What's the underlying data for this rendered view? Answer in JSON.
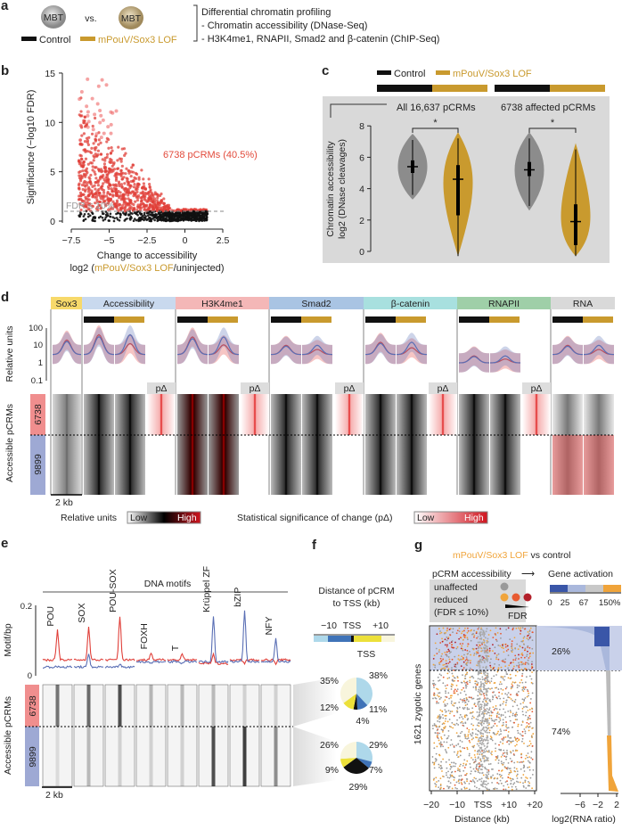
{
  "colors": {
    "control": "#111111",
    "lof": "#c99a2e",
    "red": "#e0403a",
    "blue": "#5a6fb5",
    "gray": "#8a8a8a",
    "orange": "#f0a43a"
  },
  "panel_a": {
    "label": "a",
    "embryo_label": "MBT",
    "vs": "vs.",
    "legend_control": "Control",
    "legend_lof": "mPouV/Sox3 LOF",
    "lines": [
      "Differential chromatin profiling",
      "- Chromatin accessibility (DNase-Seq)",
      "- H3K4me1, RNAPII, Smad2 and β-catenin (ChIP-Seq)"
    ]
  },
  "panel_d": {
    "label": "d",
    "tracks": [
      {
        "name": "Sox3",
        "color": "#f7d96a"
      },
      {
        "name": "Accessibility",
        "color": "#c9d9ee"
      },
      {
        "name": "H3K4me1",
        "color": "#f4b7b7"
      },
      {
        "name": "Smad2",
        "color": "#a9c4e3"
      },
      {
        "name": "β-catenin",
        "color": "#a8e0df"
      },
      {
        "name": "RNAPII",
        "color": "#9fcfa8"
      },
      {
        "name": "RNA",
        "color": "#d9d9d9"
      }
    ],
    "pdelta": "pΔ",
    "ylabel": "Relative units",
    "yticks": [
      "100",
      "10",
      "1",
      "0.1"
    ],
    "rows_label": "Accessible pCRMs",
    "group1": "6738",
    "group2": "9899",
    "scale": "2 kb",
    "legend_rel": "Relative units",
    "legend_sig": "Statistical significance of change (pΔ)",
    "low": "Low",
    "high": "High"
  },
  "panel_f": {
    "label": "f",
    "title1": "Distance of pCRM",
    "title2": "to TSS (kb)",
    "ticks": [
      "−10",
      "TSS",
      "+10"
    ],
    "tss": "TSS"
  },
  "chart_data": [
    {
      "panel": "b",
      "type": "scatter",
      "ylabel": "Significance (−log10 FDR)",
      "xlabel_1": "Change to accessibility",
      "xlabel_2a": "log2 (",
      "xlabel_2b": "mPouV/Sox3 LOF",
      "xlabel_2c": "/uninjected)",
      "xlim": [
        -7.5,
        2.5
      ],
      "ylim": [
        0,
        15
      ],
      "xticks": [
        "−7.5",
        "−5",
        "−2.5",
        "0",
        "2.5"
      ],
      "yticks": [
        "0",
        "5",
        "10",
        "15"
      ],
      "threshold_label": "FDR ≤ 10%",
      "threshold": 1,
      "annotation": "6738 pCRMs (40.5%)",
      "series": [
        {
          "name": "significant",
          "color": "#e0403a"
        },
        {
          "name": "not significant",
          "color": "#111111"
        }
      ]
    },
    {
      "panel": "c",
      "type": "violin",
      "legend_control": "Control",
      "legend_lof": "mPouV/Sox3 LOF",
      "ylabel_1": "Chromatin accessibility",
      "ylabel_2": "log2 (DNase cleavages)",
      "ylim": [
        0,
        8
      ],
      "yticks": [
        "0",
        "2",
        "4",
        "6",
        "8"
      ],
      "groups": [
        {
          "name": "All 16,637 pCRMs",
          "sig": "*",
          "control": {
            "median": 5.4,
            "q1": 5.0,
            "q3": 5.8,
            "min": 3.6,
            "max": 7.1
          },
          "lof": {
            "median": 4.6,
            "q1": 2.3,
            "q3": 5.5,
            "min": -0.3,
            "max": 7.2
          }
        },
        {
          "name": "6738 affected pCRMs",
          "sig": "*",
          "control": {
            "median": 5.2,
            "q1": 4.8,
            "q3": 5.7,
            "min": 2.9,
            "max": 7.2
          },
          "lof": {
            "median": 1.9,
            "q1": 0.4,
            "q3": 3.0,
            "min": -0.3,
            "max": 6.5
          }
        }
      ]
    },
    {
      "panel": "e",
      "type": "line",
      "title": "DNA motifs",
      "ylabel": "Motif/bp",
      "yticks": [
        "0",
        "0.2"
      ],
      "categories": [
        "POU",
        "SOX",
        "POU-SOX",
        "FOXH",
        "T",
        "Krüppel ZF",
        "bZIP",
        "NFY"
      ],
      "series": [
        {
          "name": "6738",
          "color": "#e0403a",
          "peaks": [
            0.13,
            0.14,
            0.17,
            0.065,
            0.06,
            0.06,
            0.035,
            0.035
          ]
        },
        {
          "name": "9899",
          "color": "#5a6fb5",
          "peaks": [
            0.025,
            0.06,
            0.035,
            0.035,
            0.035,
            0.17,
            0.185,
            0.105
          ]
        }
      ],
      "rows_label": "Accessible pCRMs",
      "group1": "6738",
      "group2": "9899",
      "scale": "2 kb"
    },
    {
      "panel": "f",
      "type": "pie",
      "categories": [
        "−20 to −10",
        "−10 to 0",
        "TSS",
        "0 to +10",
        "+10 to +20"
      ],
      "colors": [
        "#aed8ea",
        "#3f73b8",
        "#111111",
        "#ece03a",
        "#f8f5dc"
      ],
      "series": [
        {
          "name": "6738",
          "values": [
            38,
            11,
            4,
            12,
            35
          ],
          "labels": [
            "38%",
            "11%",
            "4%",
            "12%",
            "35%"
          ]
        },
        {
          "name": "9899",
          "values": [
            29,
            7,
            29,
            9,
            26
          ],
          "labels": [
            "29%",
            "7%",
            "29%",
            "9%",
            "26%"
          ]
        }
      ]
    },
    {
      "panel": "g",
      "type": "scatter",
      "title_a": "mPouV/Sox3 LOF",
      "title_b": " vs control",
      "header_left": "pCRM accessibility",
      "arrow": "⟶",
      "header_right": "Gene activation",
      "legend_unaffected": "unaffected",
      "legend_reduced": "reduced",
      "legend_fdr": "(FDR ≤ 10%)",
      "fdr": "FDR",
      "colorbar_ticks": [
        "0",
        "25",
        "67",
        "150%"
      ],
      "colorbar_colors": [
        "#3a56a8",
        "#aab8dc",
        "#c8c8c8",
        "#f0a43a"
      ],
      "ylabel": "1621 zygotic genes",
      "xlabel": "Distance (kb)",
      "xticks": [
        "−20",
        "−10",
        "TSS",
        "+10",
        "+20"
      ],
      "xlim": [
        -20,
        20
      ],
      "bar_xlabel": "log2(RNA ratio)",
      "bar_xticks": [
        "−6",
        "−2",
        "2"
      ],
      "fractions": [
        {
          "label": "26%",
          "value": 26
        },
        {
          "label": "74%",
          "value": 74
        }
      ]
    }
  ]
}
